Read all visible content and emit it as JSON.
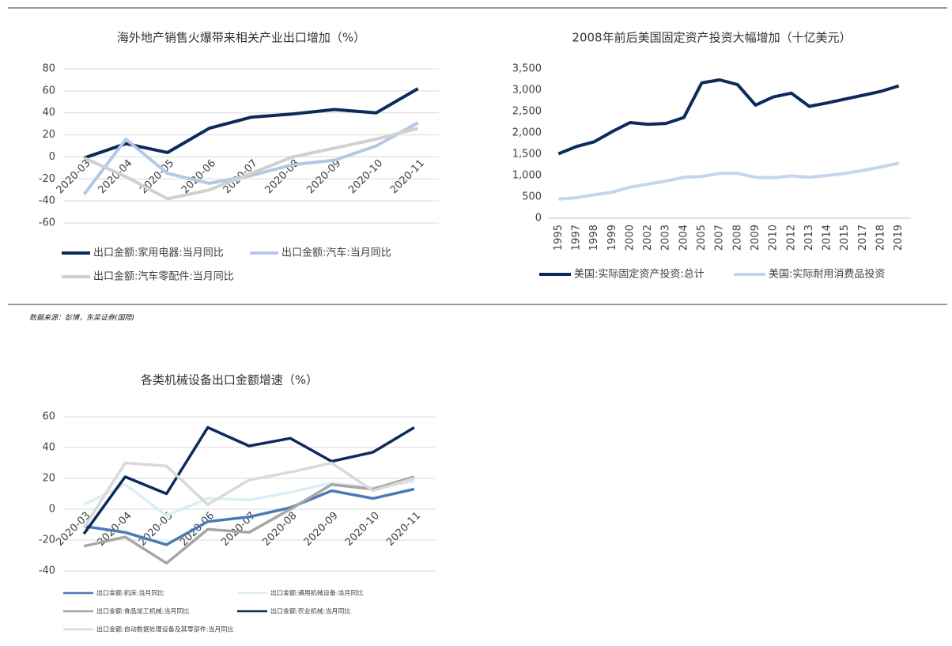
{
  "note": "数据来源：彭博，东吴证券(国際)",
  "chart_data": [
    {
      "type": "line",
      "title": "海外地产销售火爆带来相关产业出口增加（%）",
      "categories": [
        "2020-03",
        "2020-04",
        "2020-05",
        "2020-06",
        "2020-07",
        "2020-08",
        "2020-09",
        "2020-10",
        "2020-11"
      ],
      "ylim": [
        -60,
        80
      ],
      "yticks": [
        -60,
        -40,
        -20,
        0,
        20,
        40,
        60,
        80
      ],
      "grid": true,
      "series": [
        {
          "name": "出口金额:家用电器:当月同比",
          "color": "#0d2a5c",
          "values": [
            -1,
            12,
            4,
            26,
            36,
            39,
            43,
            40,
            62
          ]
        },
        {
          "name": "出口金额:汽车:当月同比",
          "color": "#b4c7e7",
          "values": [
            -34,
            16,
            -15,
            -24,
            -17,
            -7,
            -3,
            10,
            31
          ]
        },
        {
          "name": "出口金额:汽车零配件:当月同比",
          "color": "#d0d0d0",
          "values": [
            -1,
            -18,
            -38,
            -30,
            -15,
            0,
            8,
            16,
            26
          ]
        }
      ]
    },
    {
      "type": "line",
      "title": "2008年前后美国固定资产投资大幅增加（十亿美元）",
      "categories": [
        "1995",
        "1997",
        "1998",
        "1999",
        "2000",
        "2002",
        "2003",
        "2004",
        "2005",
        "2007",
        "2008",
        "2009",
        "2010",
        "2012",
        "2013",
        "2014",
        "2015",
        "2017",
        "2018",
        "2019"
      ],
      "ylim": [
        0,
        3500
      ],
      "yticks": [
        0,
        500,
        {
          "value": 1000,
          "label": "1,000"
        },
        {
          "value": 1500,
          "label": "1,500"
        },
        {
          "value": 2000,
          "label": "2,000"
        },
        {
          "value": 2500,
          "label": "2,500"
        },
        {
          "value": 3000,
          "label": "3,000"
        },
        {
          "value": 3500,
          "label": "3,500"
        }
      ],
      "grid": false,
      "series": [
        {
          "name": "美国:实际固定资产投资:总计",
          "color": "#0d2a5c",
          "values": [
            1510,
            1680,
            1790,
            2030,
            2240,
            2200,
            2220,
            2360,
            3170,
            3240,
            3130,
            2650,
            2840,
            2930,
            2620,
            2700,
            2790,
            2880,
            2970,
            3100
          ]
        },
        {
          "name": "美国:实际耐用消费品投资",
          "color": "#c5d6ec",
          "values": [
            450,
            480,
            550,
            610,
            730,
            800,
            870,
            960,
            980,
            1050,
            1050,
            960,
            950,
            990,
            960,
            1000,
            1050,
            1120,
            1200,
            1290
          ]
        }
      ]
    },
    {
      "type": "line",
      "title": "各类机械设备出口金额增速（%）",
      "categories": [
        "2020-03",
        "2020-04",
        "2020-05",
        "2020-06",
        "2020-07",
        "2020-08",
        "2020-09",
        "2020-10",
        "2020-11"
      ],
      "ylim": [
        -40,
        60
      ],
      "yticks": [
        -40,
        -20,
        0,
        20,
        40,
        60
      ],
      "grid": true,
      "series": [
        {
          "name": "出口金额:机床:当月同比",
          "color": "#4a7ab5",
          "values": [
            -11,
            -15,
            -23,
            -8,
            -5,
            1,
            12,
            7,
            13
          ]
        },
        {
          "name": "出口金额:通用机械设备:当月同比",
          "color": "#dbeef6",
          "values": [
            3,
            16,
            -4,
            7,
            6,
            11,
            17,
            14,
            18
          ]
        },
        {
          "name": "出口金额:食品加工机械:当月同比",
          "color": "#a6a6a6",
          "values": [
            -24,
            -18,
            -35,
            -13,
            -15,
            0,
            16,
            13,
            21
          ]
        },
        {
          "name": "出口金额:农业机械:当月同比",
          "color": "#0d2a5c",
          "values": [
            -16,
            21,
            10,
            53,
            41,
            46,
            31,
            37,
            53
          ]
        },
        {
          "name": "出口金额:自动数据处理设备及其零部件:当月同比",
          "color": "#d9d9d9",
          "values": [
            -12,
            30,
            28,
            3,
            19,
            24,
            30,
            12,
            20
          ]
        }
      ]
    }
  ]
}
